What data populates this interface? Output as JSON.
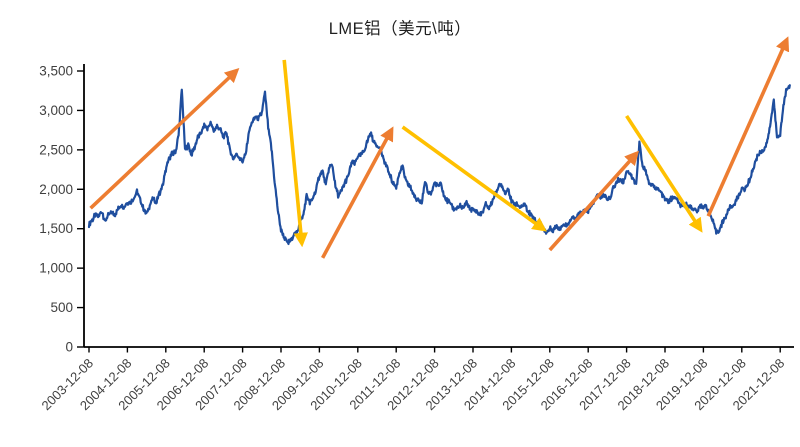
{
  "chart_data": {
    "type": "line",
    "title": "LME铝（美元\\吨）",
    "xlabel": "",
    "ylabel": "",
    "ylim": [
      0,
      3500
    ],
    "grid": false,
    "legend": "none",
    "y_axis": {
      "tick_values": [
        0,
        500,
        1000,
        1500,
        2000,
        2500,
        3000,
        3500
      ],
      "tick_labels": [
        "0",
        "500",
        "1,000",
        "1,500",
        "2,000",
        "2,500",
        "3,000",
        "3,500"
      ]
    },
    "x_axis": {
      "tick_labels": [
        "2003-12-08",
        "2004-12-08",
        "2005-12-08",
        "2006-12-08",
        "2007-12-08",
        "2008-12-08",
        "2009-12-08",
        "2010-12-08",
        "2011-12-08",
        "2012-12-08",
        "2013-12-08",
        "2014-12-08",
        "2015-12-08",
        "2016-12-08",
        "2017-12-08",
        "2018-12-08",
        "2019-12-08",
        "2020-12-08",
        "2021-12-08"
      ],
      "months_per_tick": 12
    },
    "series": [
      {
        "name": "LME铝价格",
        "unit": "美元/吨",
        "start": "2003-12",
        "interval": "monthly",
        "values": [
          1560,
          1610,
          1680,
          1650,
          1730,
          1590,
          1670,
          1710,
          1680,
          1740,
          1810,
          1770,
          1840,
          1830,
          1890,
          1970,
          1860,
          1750,
          1690,
          1800,
          1880,
          1830,
          1950,
          2040,
          2250,
          2390,
          2450,
          2470,
          2680,
          3270,
          2500,
          2560,
          2440,
          2530,
          2660,
          2710,
          2810,
          2770,
          2840,
          2740,
          2800,
          2770,
          2660,
          2720,
          2500,
          2390,
          2450,
          2400,
          2350,
          2450,
          2740,
          2850,
          2920,
          2890,
          2970,
          3230,
          2780,
          2520,
          2100,
          1740,
          1480,
          1390,
          1320,
          1340,
          1430,
          1450,
          1600,
          1680,
          1920,
          1830,
          1890,
          1990,
          2180,
          2230,
          2050,
          2270,
          2320,
          2040,
          1910,
          1990,
          2090,
          2160,
          2340,
          2320,
          2420,
          2440,
          2480,
          2610,
          2720,
          2600,
          2560,
          2520,
          2380,
          2290,
          2180,
          2080,
          2020,
          2220,
          2290,
          2100,
          2050,
          1980,
          1880,
          1870,
          1840,
          2080,
          1960,
          1950,
          2090,
          2040,
          2070,
          1900,
          1850,
          1830,
          1740,
          1770,
          1780,
          1760,
          1830,
          1750,
          1740,
          1730,
          1680,
          1700,
          1810,
          1750,
          1850,
          1950,
          2030,
          2060,
          1950,
          2020,
          1840,
          1820,
          1800,
          1760,
          1820,
          1740,
          1680,
          1640,
          1550,
          1570,
          1510,
          1450,
          1500,
          1480,
          1530,
          1500,
          1560,
          1540,
          1590,
          1640,
          1630,
          1680,
          1700,
          1730,
          1710,
          1790,
          1860,
          1930,
          1900,
          1930,
          1880,
          1900,
          2030,
          2100,
          2130,
          2090,
          2240,
          2210,
          2130,
          2060,
          2600,
          2280,
          2240,
          2080,
          2050,
          2030,
          1990,
          1940,
          1870,
          1850,
          1880,
          1900,
          1840,
          1780,
          1790,
          1800,
          1770,
          1750,
          1720,
          1780,
          1790,
          1770,
          1690,
          1580,
          1460,
          1480,
          1590,
          1650,
          1760,
          1780,
          1830,
          1920,
          2010,
          2000,
          2080,
          2190,
          2320,
          2440,
          2480,
          2500,
          2610,
          2840,
          3150,
          2650,
          2700,
          3050,
          3280,
          3320
        ]
      }
    ],
    "annotations": [
      {
        "kind": "trend-arrow",
        "direction": "up",
        "from_month": 0.5,
        "from_value": 1760,
        "to_month": 46,
        "to_value": 3500
      },
      {
        "kind": "trend-arrow",
        "direction": "down",
        "from_month": 61,
        "from_value": 3640,
        "to_month": 66.5,
        "to_value": 1320
      },
      {
        "kind": "trend-arrow",
        "direction": "up",
        "from_month": 73,
        "from_value": 1130,
        "to_month": 94.5,
        "to_value": 2750
      },
      {
        "kind": "trend-arrow",
        "direction": "down",
        "from_month": 98,
        "from_value": 2790,
        "to_month": 142,
        "to_value": 1495
      },
      {
        "kind": "trend-arrow",
        "direction": "up",
        "from_month": 144,
        "from_value": 1230,
        "to_month": 171,
        "to_value": 2450
      },
      {
        "kind": "trend-arrow",
        "direction": "down",
        "from_month": 168,
        "from_value": 2930,
        "to_month": 191,
        "to_value": 1495
      },
      {
        "kind": "trend-arrow",
        "direction": "up",
        "from_month": 193.5,
        "from_value": 1660,
        "to_month": 218,
        "to_value": 3890
      }
    ],
    "colors": {
      "price_line": "#1F4E9E",
      "up_arrow": "#ED7D31",
      "down_arrow": "#FFC000",
      "axis": "#000000",
      "tick_label": "#3F3F3F",
      "title": "#1F1F1F",
      "background": "#FFFFFF"
    }
  }
}
